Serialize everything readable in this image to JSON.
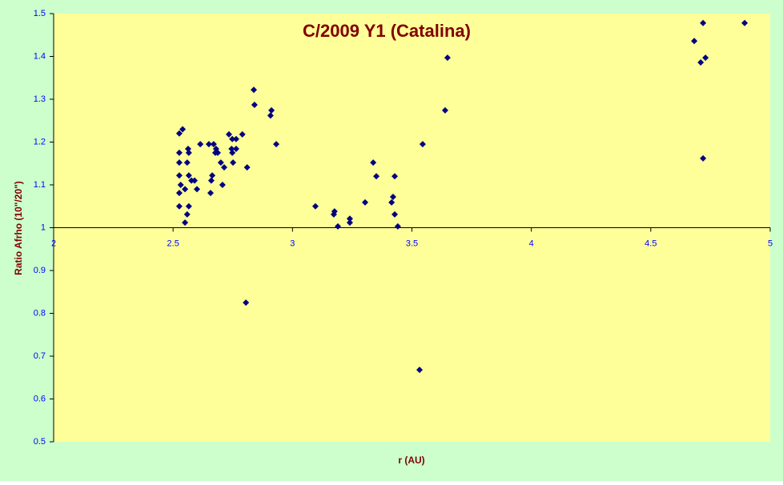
{
  "chart_data": {
    "type": "scatter",
    "title": "C/2009 Y1 (Catalina)",
    "x_label": "r (AU)",
    "y_label": "Ratio Afrho (10\"/20\")",
    "series": [
      {
        "color": "#000080",
        "x": [
          2.526,
          2.54,
          2.526,
          2.526,
          2.526,
          2.532,
          2.526,
          2.526,
          2.55,
          2.55,
          2.563,
          2.566,
          2.559,
          2.566,
          2.566,
          2.559,
          2.577,
          2.59,
          2.6,
          2.614,
          2.65,
          2.657,
          2.66,
          2.664,
          2.67,
          2.677,
          2.68,
          2.687,
          2.7,
          2.707,
          2.714,
          2.734,
          2.748,
          2.745,
          2.748,
          2.751,
          2.764,
          2.764,
          2.79,
          2.81,
          2.805,
          2.838,
          2.841,
          2.912,
          2.908,
          2.932,
          3.096,
          3.173,
          3.176,
          3.19,
          3.24,
          3.24,
          3.304,
          3.338,
          3.351,
          3.415,
          3.421,
          3.428,
          3.428,
          3.441,
          3.532,
          3.545,
          3.639,
          3.649,
          4.682,
          4.719,
          4.709,
          4.729,
          4.719,
          4.893
        ],
        "y": [
          1.22,
          1.23,
          1.175,
          1.152,
          1.122,
          1.1,
          1.081,
          1.05,
          1.09,
          1.012,
          1.184,
          1.175,
          1.152,
          1.122,
          1.05,
          1.031,
          1.11,
          1.11,
          1.09,
          1.195,
          1.195,
          1.081,
          1.11,
          1.122,
          1.195,
          1.175,
          1.184,
          1.175,
          1.152,
          1.1,
          1.141,
          1.218,
          1.207,
          1.184,
          1.175,
          1.152,
          1.207,
          1.184,
          1.218,
          1.141,
          0.825,
          1.322,
          1.287,
          1.274,
          1.262,
          1.195,
          1.05,
          1.031,
          1.038,
          1.003,
          1.021,
          1.012,
          1.059,
          1.152,
          1.12,
          1.059,
          1.072,
          1.12,
          1.031,
          1.003,
          0.668,
          1.195,
          1.274,
          1.397,
          1.436,
          1.478,
          1.386,
          1.397,
          1.162,
          1.478
        ]
      }
    ],
    "xlim": [
      2,
      5
    ],
    "xticks": [
      2,
      2.5,
      3,
      3.5,
      4,
      4.5,
      5
    ],
    "ylim": [
      0.5,
      1.5
    ],
    "yticks": [
      0.5,
      0.6,
      0.7,
      0.8,
      0.9,
      1,
      1.1,
      1.2,
      1.3,
      1.4,
      1.5
    ],
    "xaxis_crosses": 1,
    "grid": false
  }
}
